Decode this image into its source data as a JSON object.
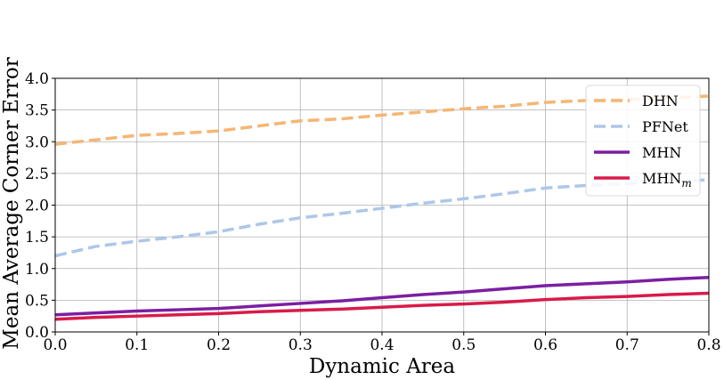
{
  "chart_data": {
    "type": "line",
    "xlabel": "Dynamic Area",
    "ylabel": "Mean Average Corner Error",
    "xlim": [
      0.0,
      0.8
    ],
    "ylim": [
      0.0,
      4.0
    ],
    "xticks": [
      "0.0",
      "0.1",
      "0.2",
      "0.3",
      "0.4",
      "0.5",
      "0.6",
      "0.7",
      "0.8"
    ],
    "yticks": [
      "0.0",
      "0.5",
      "1.0",
      "1.5",
      "2.0",
      "2.5",
      "3.0",
      "3.5",
      "4.0"
    ],
    "grid": true,
    "legend_position": "top-right",
    "x": [
      0.0,
      0.05,
      0.1,
      0.15,
      0.2,
      0.25,
      0.3,
      0.35,
      0.4,
      0.45,
      0.5,
      0.55,
      0.6,
      0.65,
      0.7,
      0.75,
      0.8
    ],
    "series": [
      {
        "name": "DHN",
        "label_main": "DHN",
        "label_sub": "",
        "color": "#f5b673",
        "dash": "dashed",
        "values": [
          2.96,
          3.03,
          3.1,
          3.13,
          3.17,
          3.25,
          3.33,
          3.36,
          3.42,
          3.47,
          3.52,
          3.56,
          3.62,
          3.65,
          3.67,
          3.69,
          3.72
        ]
      },
      {
        "name": "PFNet",
        "label_main": "PFNet",
        "label_sub": "",
        "color": "#aec7e8",
        "dash": "dashed",
        "values": [
          1.2,
          1.35,
          1.43,
          1.5,
          1.58,
          1.7,
          1.8,
          1.87,
          1.95,
          2.03,
          2.1,
          2.18,
          2.27,
          2.31,
          2.34,
          2.37,
          2.4
        ]
      },
      {
        "name": "MHN",
        "label_main": "MHN",
        "label_sub": "",
        "color": "#7b1fa2",
        "dash": "solid",
        "values": [
          0.27,
          0.3,
          0.33,
          0.35,
          0.37,
          0.41,
          0.45,
          0.49,
          0.54,
          0.59,
          0.63,
          0.68,
          0.73,
          0.76,
          0.79,
          0.83,
          0.86
        ]
      },
      {
        "name": "MHNm",
        "label_main": "MHN",
        "label_sub": "m",
        "color": "#d81b4a",
        "dash": "solid",
        "values": [
          0.2,
          0.23,
          0.25,
          0.27,
          0.29,
          0.32,
          0.34,
          0.36,
          0.39,
          0.42,
          0.44,
          0.47,
          0.51,
          0.54,
          0.56,
          0.59,
          0.61
        ]
      }
    ]
  }
}
